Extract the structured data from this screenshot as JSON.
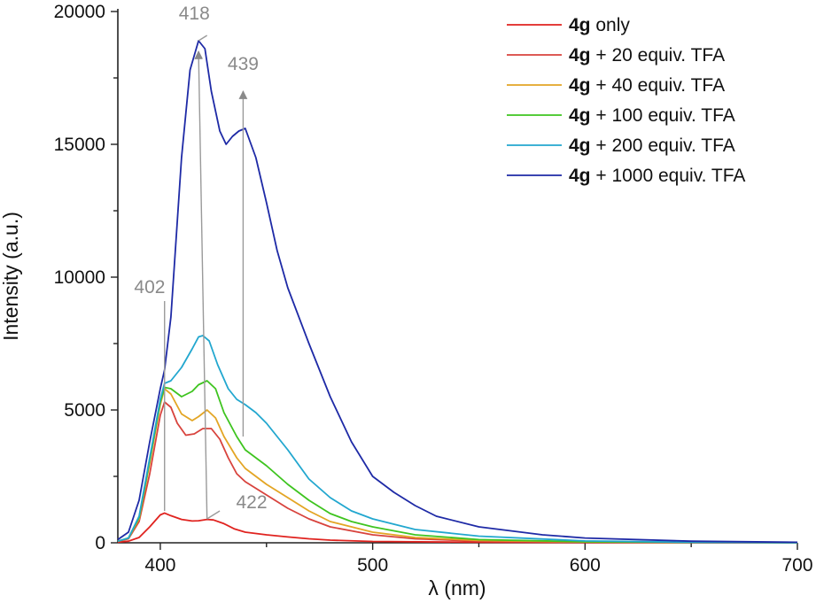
{
  "chart_data": {
    "type": "line",
    "xlabel": "λ (nm)",
    "ylabel": "Intensity (a.u.)",
    "xlim": [
      380,
      700
    ],
    "ylim": [
      0,
      20000
    ],
    "x_ticks": [
      400,
      500,
      600,
      700
    ],
    "y_ticks": [
      0,
      5000,
      10000,
      15000,
      20000
    ],
    "grid": false,
    "legend_position": "top-right",
    "series": [
      {
        "name_bold": "4g",
        "name_rest": " only",
        "color": "#e0231f",
        "points": [
          [
            380,
            20
          ],
          [
            385,
            60
          ],
          [
            390,
            200
          ],
          [
            395,
            600
          ],
          [
            400,
            1050
          ],
          [
            402,
            1120
          ],
          [
            405,
            1020
          ],
          [
            410,
            880
          ],
          [
            415,
            820
          ],
          [
            418,
            830
          ],
          [
            422,
            880
          ],
          [
            425,
            860
          ],
          [
            430,
            720
          ],
          [
            435,
            520
          ],
          [
            440,
            400
          ],
          [
            450,
            300
          ],
          [
            460,
            220
          ],
          [
            470,
            150
          ],
          [
            480,
            100
          ],
          [
            500,
            50
          ],
          [
            550,
            20
          ],
          [
            600,
            10
          ],
          [
            700,
            5
          ]
        ]
      },
      {
        "name_bold": "4g",
        "name_rest": " + 20 equiv. TFA",
        "color": "#d8433d",
        "points": [
          [
            380,
            50
          ],
          [
            385,
            150
          ],
          [
            390,
            800
          ],
          [
            395,
            2600
          ],
          [
            400,
            4800
          ],
          [
            402,
            5300
          ],
          [
            405,
            5100
          ],
          [
            408,
            4500
          ],
          [
            412,
            4050
          ],
          [
            416,
            4100
          ],
          [
            420,
            4300
          ],
          [
            424,
            4300
          ],
          [
            428,
            3900
          ],
          [
            432,
            3200
          ],
          [
            436,
            2600
          ],
          [
            440,
            2300
          ],
          [
            450,
            1800
          ],
          [
            460,
            1300
          ],
          [
            470,
            900
          ],
          [
            480,
            600
          ],
          [
            500,
            300
          ],
          [
            520,
            150
          ],
          [
            550,
            60
          ],
          [
            600,
            20
          ],
          [
            700,
            5
          ]
        ]
      },
      {
        "name_bold": "4g",
        "name_rest": " + 40 equiv. TFA",
        "color": "#e3a524",
        "points": [
          [
            380,
            60
          ],
          [
            385,
            170
          ],
          [
            390,
            900
          ],
          [
            395,
            3000
          ],
          [
            400,
            5200
          ],
          [
            402,
            5800
          ],
          [
            405,
            5600
          ],
          [
            410,
            4850
          ],
          [
            415,
            4600
          ],
          [
            418,
            4750
          ],
          [
            422,
            5000
          ],
          [
            426,
            4700
          ],
          [
            430,
            4000
          ],
          [
            436,
            3200
          ],
          [
            440,
            2800
          ],
          [
            450,
            2200
          ],
          [
            460,
            1700
          ],
          [
            470,
            1200
          ],
          [
            480,
            800
          ],
          [
            500,
            400
          ],
          [
            520,
            200
          ],
          [
            550,
            90
          ],
          [
            600,
            30
          ],
          [
            700,
            5
          ]
        ]
      },
      {
        "name_bold": "4g",
        "name_rest": " + 100 equiv. TFA",
        "color": "#3ec41f",
        "points": [
          [
            380,
            60
          ],
          [
            385,
            180
          ],
          [
            390,
            950
          ],
          [
            395,
            3100
          ],
          [
            400,
            5300
          ],
          [
            402,
            5850
          ],
          [
            405,
            5800
          ],
          [
            410,
            5500
          ],
          [
            415,
            5700
          ],
          [
            418,
            5950
          ],
          [
            422,
            6100
          ],
          [
            426,
            5800
          ],
          [
            430,
            4900
          ],
          [
            436,
            4000
          ],
          [
            440,
            3500
          ],
          [
            450,
            2900
          ],
          [
            460,
            2200
          ],
          [
            470,
            1600
          ],
          [
            480,
            1100
          ],
          [
            490,
            800
          ],
          [
            500,
            600
          ],
          [
            520,
            300
          ],
          [
            550,
            120
          ],
          [
            600,
            40
          ],
          [
            700,
            5
          ]
        ]
      },
      {
        "name_bold": "4g",
        "name_rest": " + 200 equiv. TFA",
        "color": "#22a7cf",
        "points": [
          [
            380,
            60
          ],
          [
            385,
            180
          ],
          [
            390,
            1000
          ],
          [
            395,
            3200
          ],
          [
            400,
            5400
          ],
          [
            402,
            6000
          ],
          [
            405,
            6100
          ],
          [
            410,
            6600
          ],
          [
            415,
            7300
          ],
          [
            418,
            7750
          ],
          [
            420,
            7800
          ],
          [
            423,
            7600
          ],
          [
            427,
            6700
          ],
          [
            432,
            5800
          ],
          [
            436,
            5400
          ],
          [
            440,
            5200
          ],
          [
            445,
            4900
          ],
          [
            450,
            4500
          ],
          [
            460,
            3500
          ],
          [
            470,
            2400
          ],
          [
            480,
            1700
          ],
          [
            490,
            1200
          ],
          [
            500,
            900
          ],
          [
            520,
            500
          ],
          [
            550,
            250
          ],
          [
            600,
            70
          ],
          [
            650,
            20
          ],
          [
            700,
            5
          ]
        ]
      },
      {
        "name_bold": "4g",
        "name_rest": " + 1000 equiv. TFA",
        "color": "#1e2aa6",
        "points": [
          [
            380,
            120
          ],
          [
            385,
            400
          ],
          [
            390,
            1600
          ],
          [
            395,
            3800
          ],
          [
            400,
            5800
          ],
          [
            402,
            6500
          ],
          [
            405,
            8500
          ],
          [
            410,
            14500
          ],
          [
            414,
            17800
          ],
          [
            418,
            18900
          ],
          [
            421,
            18600
          ],
          [
            424,
            17000
          ],
          [
            428,
            15500
          ],
          [
            431,
            15000
          ],
          [
            434,
            15300
          ],
          [
            437,
            15500
          ],
          [
            440,
            15600
          ],
          [
            445,
            14500
          ],
          [
            450,
            12800
          ],
          [
            455,
            11000
          ],
          [
            460,
            9600
          ],
          [
            470,
            7500
          ],
          [
            480,
            5500
          ],
          [
            490,
            3800
          ],
          [
            500,
            2500
          ],
          [
            510,
            1900
          ],
          [
            520,
            1400
          ],
          [
            530,
            1000
          ],
          [
            550,
            600
          ],
          [
            580,
            300
          ],
          [
            600,
            180
          ],
          [
            650,
            60
          ],
          [
            700,
            20
          ]
        ]
      }
    ],
    "annotations": [
      {
        "label": "418",
        "text_at": [
          416,
          19700
        ],
        "from": [
          422,
          19100
        ],
        "to": [
          418,
          18900
        ]
      },
      {
        "label": "439",
        "text_at": [
          439,
          17800
        ],
        "arrow_from": [
          439,
          4000
        ],
        "arrow_to": [
          439,
          17000
        ]
      },
      {
        "label": "402",
        "text_at": [
          395,
          9400
        ],
        "from": [
          402,
          9100
        ],
        "to": [
          402,
          1200
        ]
      },
      {
        "label": "422",
        "text_at": [
          443,
          1300
        ],
        "from": [
          428,
          1200
        ],
        "to": [
          422,
          900
        ]
      }
    ],
    "trend_arrow": {
      "from": [
        422,
        900
      ],
      "to": [
        418,
        18500
      ]
    }
  }
}
